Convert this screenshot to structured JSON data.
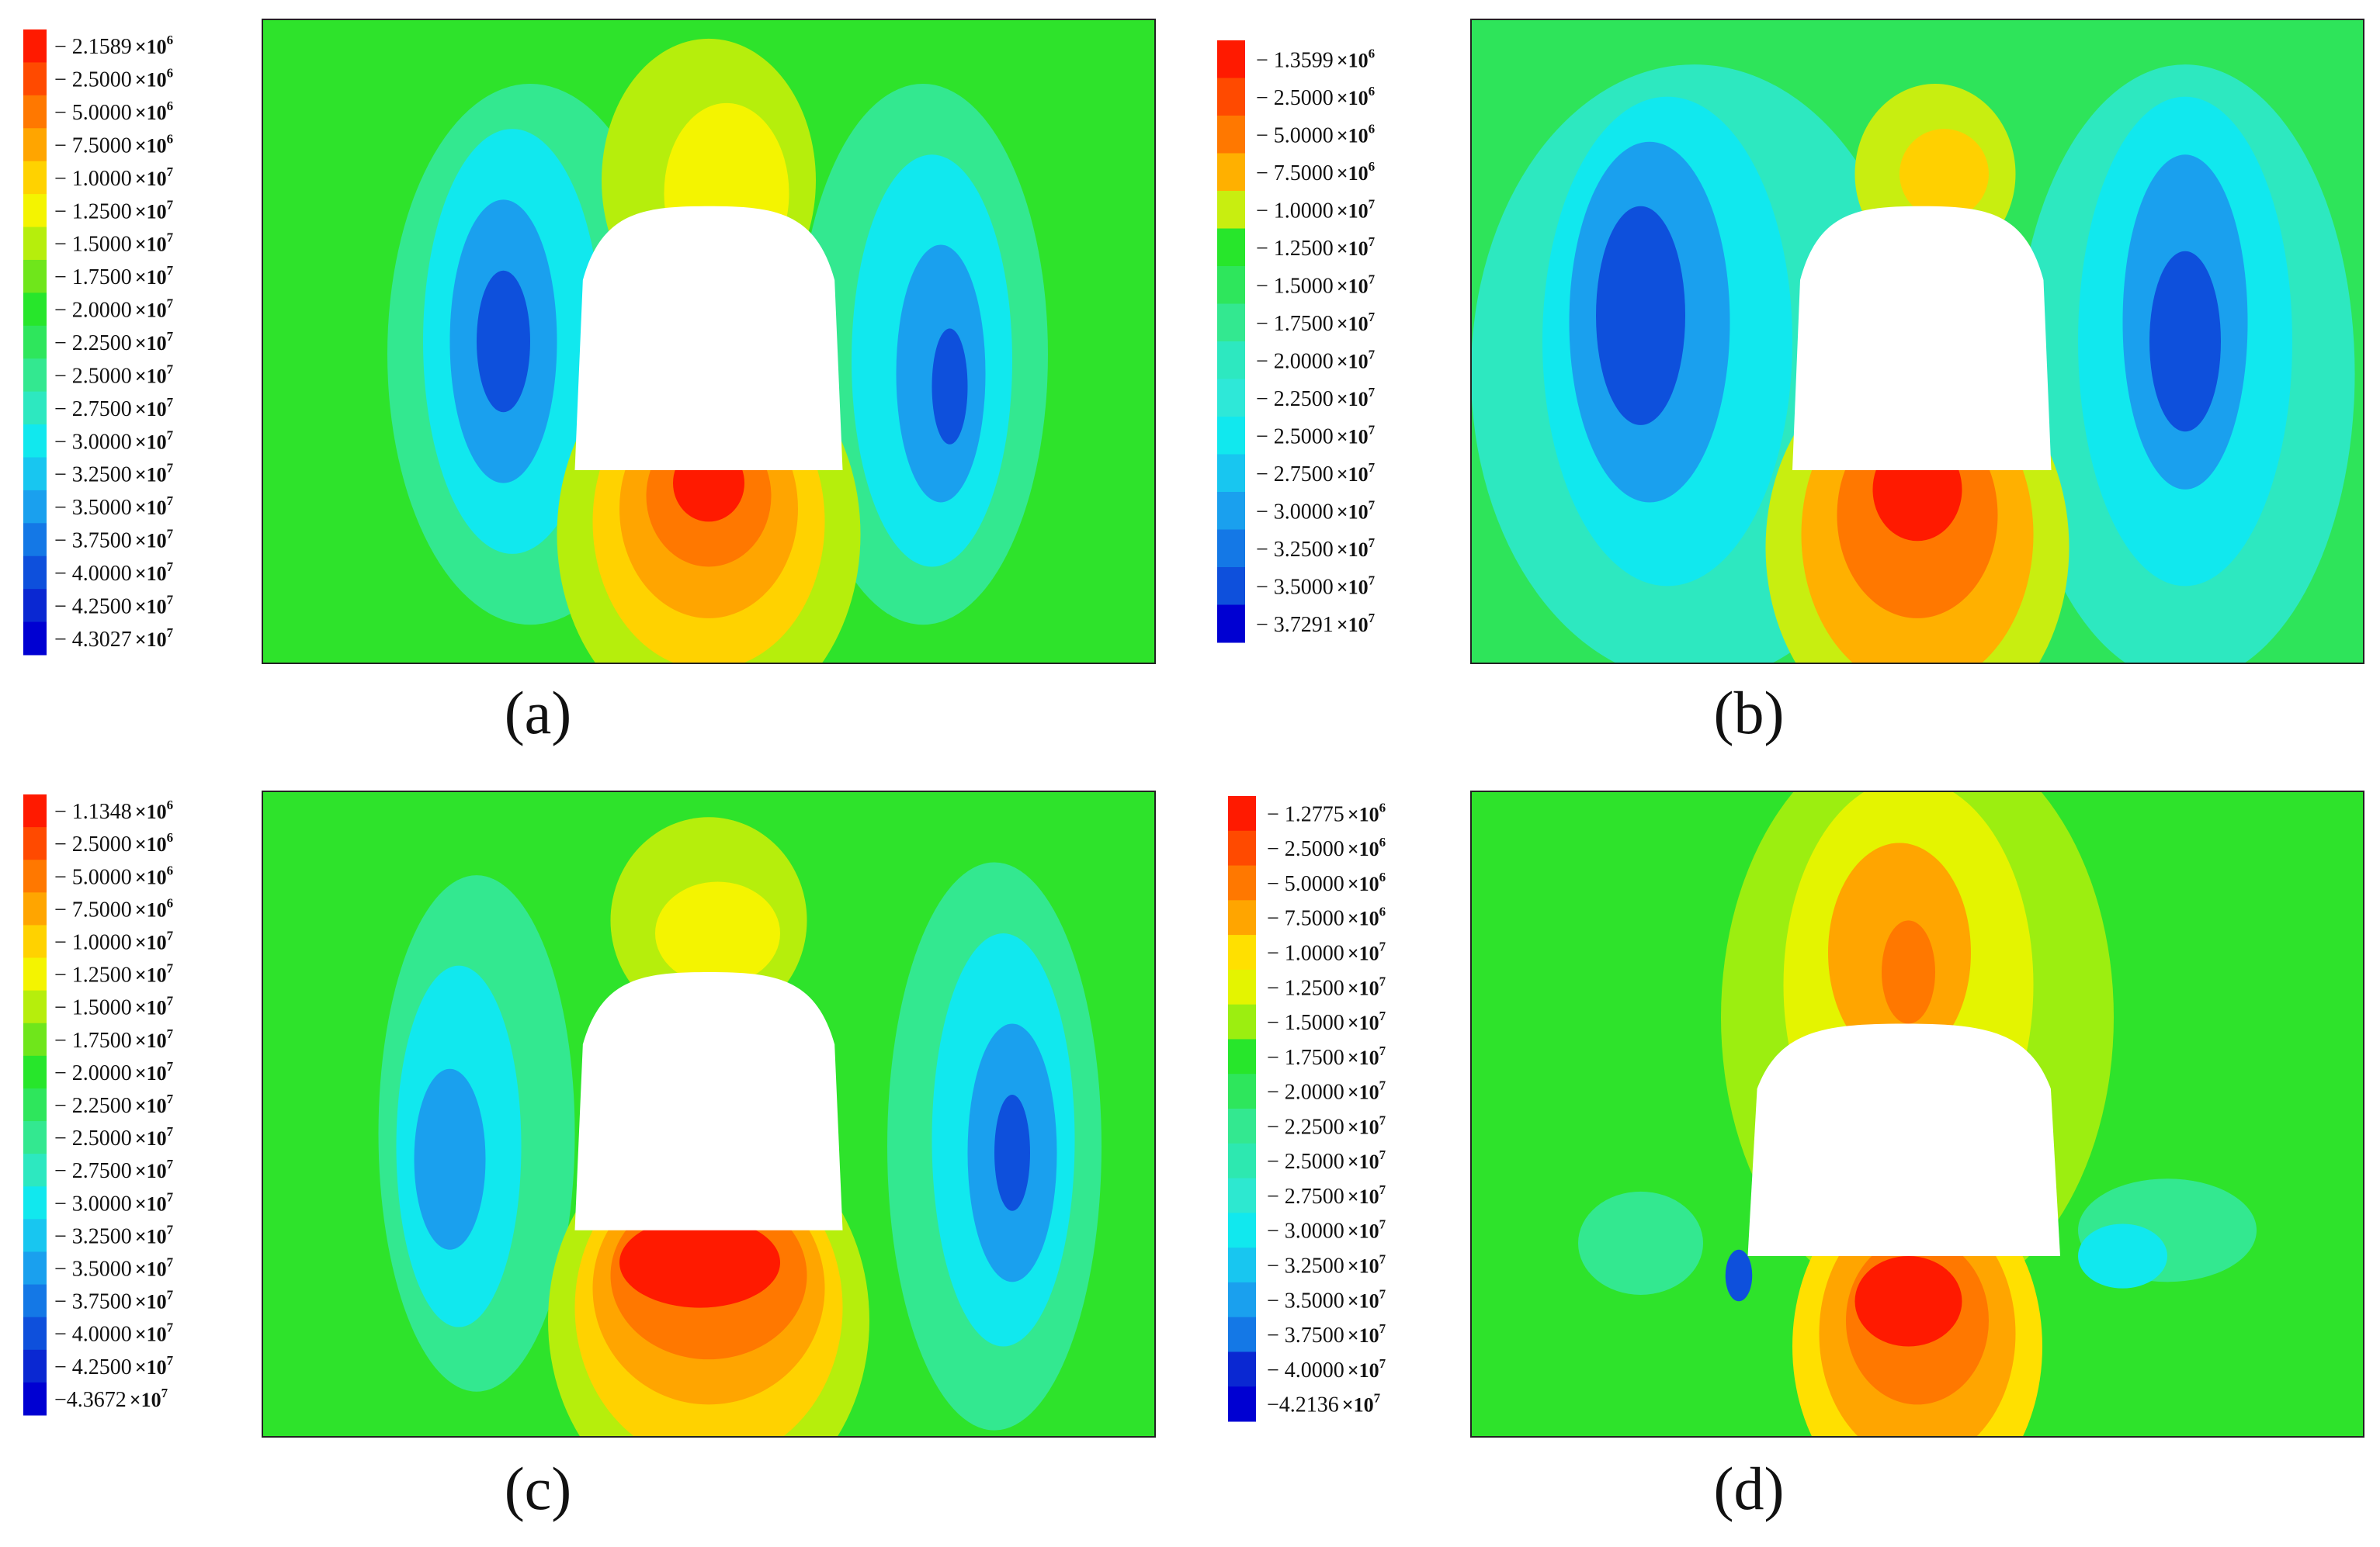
{
  "chart_data": [
    {
      "type": "heatmap",
      "caption": "(a)",
      "legend": {
        "entries": [
          {
            "mantissa": "− 2.1589",
            "exponent": "6",
            "color": "#ff1a00"
          },
          {
            "mantissa": "− 2.5000",
            "exponent": "6",
            "color": "#ff4a00"
          },
          {
            "mantissa": "− 5.0000",
            "exponent": "6",
            "color": "#ff7800"
          },
          {
            "mantissa": "− 7.5000",
            "exponent": "6",
            "color": "#ffa500"
          },
          {
            "mantissa": "− 1.0000",
            "exponent": "7",
            "color": "#ffd200"
          },
          {
            "mantissa": "− 1.2500",
            "exponent": "7",
            "color": "#f4f400"
          },
          {
            "mantissa": "− 1.5000",
            "exponent": "7",
            "color": "#b6ee0c"
          },
          {
            "mantissa": "− 1.7500",
            "exponent": "7",
            "color": "#6fe61b"
          },
          {
            "mantissa": "− 2.0000",
            "exponent": "7",
            "color": "#27e62b"
          },
          {
            "mantissa": "− 2.2500",
            "exponent": "7",
            "color": "#2ee65c"
          },
          {
            "mantissa": "− 2.5000",
            "exponent": "7",
            "color": "#33e890"
          },
          {
            "mantissa": "− 2.7500",
            "exponent": "7",
            "color": "#2de8c0"
          },
          {
            "mantissa": "− 3.0000",
            "exponent": "7",
            "color": "#11e8ee"
          },
          {
            "mantissa": "− 3.2500",
            "exponent": "7",
            "color": "#18c6f0"
          },
          {
            "mantissa": "− 3.5000",
            "exponent": "7",
            "color": "#1aa0ee"
          },
          {
            "mantissa": "− 3.7500",
            "exponent": "7",
            "color": "#1478e6"
          },
          {
            "mantissa": "− 4.0000",
            "exponent": "7",
            "color": "#0e50dc"
          },
          {
            "mantissa": "− 4.2500",
            "exponent": "7",
            "color": "#0a28d2"
          },
          {
            "mantissa": "− 4.3027",
            "exponent": "7",
            "color": "#0000d2"
          }
        ]
      },
      "field": {
        "background": "#2ee32b",
        "regions": [
          {
            "color": "#33e890",
            "cx": 0.3,
            "cy": 0.52,
            "rx": 0.16,
            "ry": 0.42
          },
          {
            "color": "#11e8ee",
            "cx": 0.28,
            "cy": 0.5,
            "rx": 0.1,
            "ry": 0.33
          },
          {
            "color": "#1aa0ee",
            "cx": 0.27,
            "cy": 0.5,
            "rx": 0.06,
            "ry": 0.22
          },
          {
            "color": "#0e50dc",
            "cx": 0.27,
            "cy": 0.5,
            "rx": 0.03,
            "ry": 0.11
          },
          {
            "color": "#33e890",
            "cx": 0.74,
            "cy": 0.52,
            "rx": 0.14,
            "ry": 0.42
          },
          {
            "color": "#11e8ee",
            "cx": 0.75,
            "cy": 0.53,
            "rx": 0.09,
            "ry": 0.32
          },
          {
            "color": "#1aa0ee",
            "cx": 0.76,
            "cy": 0.55,
            "rx": 0.05,
            "ry": 0.2
          },
          {
            "color": "#0e50dc",
            "cx": 0.77,
            "cy": 0.57,
            "rx": 0.02,
            "ry": 0.09
          },
          {
            "color": "#b6ee0c",
            "cx": 0.5,
            "cy": 0.25,
            "rx": 0.12,
            "ry": 0.22
          },
          {
            "color": "#f4f400",
            "cx": 0.52,
            "cy": 0.27,
            "rx": 0.07,
            "ry": 0.14
          },
          {
            "color": "#b6ee0c",
            "cx": 0.5,
            "cy": 0.8,
            "rx": 0.17,
            "ry": 0.3
          },
          {
            "color": "#ffd200",
            "cx": 0.5,
            "cy": 0.78,
            "rx": 0.13,
            "ry": 0.23
          },
          {
            "color": "#ffa500",
            "cx": 0.5,
            "cy": 0.76,
            "rx": 0.1,
            "ry": 0.17
          },
          {
            "color": "#ff7800",
            "cx": 0.5,
            "cy": 0.74,
            "rx": 0.07,
            "ry": 0.11
          },
          {
            "color": "#ff1a00",
            "cx": 0.5,
            "cy": 0.72,
            "rx": 0.04,
            "ry": 0.06
          }
        ]
      },
      "opening": {
        "top": 0.29,
        "bottom": 0.7,
        "left": 0.35,
        "right": 0.65
      }
    },
    {
      "type": "heatmap",
      "caption": "(b)",
      "legend": {
        "entries": [
          {
            "mantissa": "− 1.3599",
            "exponent": "6",
            "color": "#ff1a00"
          },
          {
            "mantissa": "− 2.5000",
            "exponent": "6",
            "color": "#ff4a00"
          },
          {
            "mantissa": "− 5.0000",
            "exponent": "6",
            "color": "#ff7800"
          },
          {
            "mantissa": "− 7.5000",
            "exponent": "6",
            "color": "#ffb000"
          },
          {
            "mantissa": "− 1.0000",
            "exponent": "7",
            "color": "#c8ee10"
          },
          {
            "mantissa": "− 1.2500",
            "exponent": "7",
            "color": "#27e62b"
          },
          {
            "mantissa": "− 1.5000",
            "exponent": "7",
            "color": "#2ee65c"
          },
          {
            "mantissa": "− 1.7500",
            "exponent": "7",
            "color": "#33e890"
          },
          {
            "mantissa": "− 2.0000",
            "exponent": "7",
            "color": "#2de8c0"
          },
          {
            "mantissa": "− 2.2500",
            "exponent": "7",
            "color": "#2ee8d8"
          },
          {
            "mantissa": "− 2.5000",
            "exponent": "7",
            "color": "#11e8ee"
          },
          {
            "mantissa": "− 2.7500",
            "exponent": "7",
            "color": "#18c6f0"
          },
          {
            "mantissa": "− 3.0000",
            "exponent": "7",
            "color": "#1aa0ee"
          },
          {
            "mantissa": "− 3.2500",
            "exponent": "7",
            "color": "#1478e6"
          },
          {
            "mantissa": "− 3.5000",
            "exponent": "7",
            "color": "#0e50dc"
          },
          {
            "mantissa": "− 3.7291",
            "exponent": "7",
            "color": "#0000d2"
          }
        ]
      },
      "field": {
        "background": "#2ee45a",
        "regions": [
          {
            "color": "#2de8c0",
            "cx": 0.25,
            "cy": 0.55,
            "rx": 0.25,
            "ry": 0.48
          },
          {
            "color": "#11e8ee",
            "cx": 0.22,
            "cy": 0.5,
            "rx": 0.14,
            "ry": 0.38
          },
          {
            "color": "#1aa0ee",
            "cx": 0.2,
            "cy": 0.47,
            "rx": 0.09,
            "ry": 0.28
          },
          {
            "color": "#0e50dc",
            "cx": 0.19,
            "cy": 0.46,
            "rx": 0.05,
            "ry": 0.17
          },
          {
            "color": "#2de8c0",
            "cx": 0.8,
            "cy": 0.55,
            "rx": 0.19,
            "ry": 0.48
          },
          {
            "color": "#11e8ee",
            "cx": 0.8,
            "cy": 0.5,
            "rx": 0.12,
            "ry": 0.38
          },
          {
            "color": "#1aa0ee",
            "cx": 0.8,
            "cy": 0.47,
            "rx": 0.07,
            "ry": 0.26
          },
          {
            "color": "#0e50dc",
            "cx": 0.8,
            "cy": 0.5,
            "rx": 0.04,
            "ry": 0.14
          },
          {
            "color": "#c8ee10",
            "cx": 0.52,
            "cy": 0.24,
            "rx": 0.09,
            "ry": 0.14
          },
          {
            "color": "#ffd000",
            "cx": 0.53,
            "cy": 0.24,
            "rx": 0.05,
            "ry": 0.07
          },
          {
            "color": "#c8ee10",
            "cx": 0.5,
            "cy": 0.82,
            "rx": 0.17,
            "ry": 0.3
          },
          {
            "color": "#ffb000",
            "cx": 0.5,
            "cy": 0.8,
            "rx": 0.13,
            "ry": 0.24
          },
          {
            "color": "#ff7800",
            "cx": 0.5,
            "cy": 0.77,
            "rx": 0.09,
            "ry": 0.16
          },
          {
            "color": "#ff1a00",
            "cx": 0.5,
            "cy": 0.73,
            "rx": 0.05,
            "ry": 0.08
          }
        ]
      },
      "opening": {
        "top": 0.29,
        "bottom": 0.7,
        "left": 0.36,
        "right": 0.65
      }
    },
    {
      "type": "heatmap",
      "caption": "(c)",
      "legend": {
        "entries": [
          {
            "mantissa": "− 1.1348",
            "exponent": "6",
            "color": "#ff1a00"
          },
          {
            "mantissa": "− 2.5000",
            "exponent": "6",
            "color": "#ff4a00"
          },
          {
            "mantissa": "− 5.0000",
            "exponent": "6",
            "color": "#ff7800"
          },
          {
            "mantissa": "− 7.5000",
            "exponent": "6",
            "color": "#ffa500"
          },
          {
            "mantissa": "− 1.0000",
            "exponent": "7",
            "color": "#ffd200"
          },
          {
            "mantissa": "− 1.2500",
            "exponent": "7",
            "color": "#f4f400"
          },
          {
            "mantissa": "− 1.5000",
            "exponent": "7",
            "color": "#b6ee0c"
          },
          {
            "mantissa": "− 1.7500",
            "exponent": "7",
            "color": "#6fe61b"
          },
          {
            "mantissa": "− 2.0000",
            "exponent": "7",
            "color": "#27e62b"
          },
          {
            "mantissa": "− 2.2500",
            "exponent": "7",
            "color": "#2ee65c"
          },
          {
            "mantissa": "− 2.5000",
            "exponent": "7",
            "color": "#33e890"
          },
          {
            "mantissa": "− 2.7500",
            "exponent": "7",
            "color": "#2de8c0"
          },
          {
            "mantissa": "− 3.0000",
            "exponent": "7",
            "color": "#11e8ee"
          },
          {
            "mantissa": "− 3.2500",
            "exponent": "7",
            "color": "#18c6f0"
          },
          {
            "mantissa": "− 3.5000",
            "exponent": "7",
            "color": "#1aa0ee"
          },
          {
            "mantissa": "− 3.7500",
            "exponent": "7",
            "color": "#1478e6"
          },
          {
            "mantissa": "− 4.0000",
            "exponent": "7",
            "color": "#0e50dc"
          },
          {
            "mantissa": "− 4.2500",
            "exponent": "7",
            "color": "#0a28d2"
          },
          {
            "mantissa": "−4.3672",
            "exponent": "7",
            "color": "#0000d2"
          }
        ]
      },
      "field": {
        "background": "#2ee32b",
        "regions": [
          {
            "color": "#33e890",
            "cx": 0.24,
            "cy": 0.53,
            "rx": 0.11,
            "ry": 0.4
          },
          {
            "color": "#11e8ee",
            "cx": 0.22,
            "cy": 0.55,
            "rx": 0.07,
            "ry": 0.28
          },
          {
            "color": "#1aa0ee",
            "cx": 0.21,
            "cy": 0.57,
            "rx": 0.04,
            "ry": 0.14
          },
          {
            "color": "#33e890",
            "cx": 0.82,
            "cy": 0.55,
            "rx": 0.12,
            "ry": 0.44
          },
          {
            "color": "#11e8ee",
            "cx": 0.83,
            "cy": 0.54,
            "rx": 0.08,
            "ry": 0.32
          },
          {
            "color": "#1aa0ee",
            "cx": 0.84,
            "cy": 0.56,
            "rx": 0.05,
            "ry": 0.2
          },
          {
            "color": "#0e50dc",
            "cx": 0.84,
            "cy": 0.56,
            "rx": 0.02,
            "ry": 0.09
          },
          {
            "color": "#b6ee0c",
            "cx": 0.5,
            "cy": 0.2,
            "rx": 0.11,
            "ry": 0.16
          },
          {
            "color": "#f4f400",
            "cx": 0.51,
            "cy": 0.22,
            "rx": 0.07,
            "ry": 0.08
          },
          {
            "color": "#b6ee0c",
            "cx": 0.5,
            "cy": 0.82,
            "rx": 0.18,
            "ry": 0.3
          },
          {
            "color": "#ffd200",
            "cx": 0.5,
            "cy": 0.8,
            "rx": 0.15,
            "ry": 0.24
          },
          {
            "color": "#ffa500",
            "cx": 0.5,
            "cy": 0.77,
            "rx": 0.13,
            "ry": 0.18
          },
          {
            "color": "#ff7800",
            "cx": 0.5,
            "cy": 0.75,
            "rx": 0.11,
            "ry": 0.13
          },
          {
            "color": "#ff1a00",
            "cx": 0.49,
            "cy": 0.73,
            "rx": 0.09,
            "ry": 0.07
          }
        ]
      },
      "opening": {
        "top": 0.28,
        "bottom": 0.68,
        "left": 0.35,
        "right": 0.65
      }
    },
    {
      "type": "heatmap",
      "caption": "(d)",
      "legend": {
        "entries": [
          {
            "mantissa": "− 1.2775",
            "exponent": "6",
            "color": "#ff1a00"
          },
          {
            "mantissa": "− 2.5000",
            "exponent": "6",
            "color": "#ff4a00"
          },
          {
            "mantissa": "− 5.0000",
            "exponent": "6",
            "color": "#ff7800"
          },
          {
            "mantissa": "− 7.5000",
            "exponent": "6",
            "color": "#ffa500"
          },
          {
            "mantissa": "− 1.0000",
            "exponent": "7",
            "color": "#ffe000"
          },
          {
            "mantissa": "− 1.2500",
            "exponent": "7",
            "color": "#e4f400"
          },
          {
            "mantissa": "− 1.5000",
            "exponent": "7",
            "color": "#9cee10"
          },
          {
            "mantissa": "− 1.7500",
            "exponent": "7",
            "color": "#27e62b"
          },
          {
            "mantissa": "− 2.0000",
            "exponent": "7",
            "color": "#2ee65c"
          },
          {
            "mantissa": "− 2.2500",
            "exponent": "7",
            "color": "#33e890"
          },
          {
            "mantissa": "− 2.5000",
            "exponent": "7",
            "color": "#2de8b0"
          },
          {
            "mantissa": "− 2.7500",
            "exponent": "7",
            "color": "#2de8d0"
          },
          {
            "mantissa": "− 3.0000",
            "exponent": "7",
            "color": "#11e8ee"
          },
          {
            "mantissa": "− 3.2500",
            "exponent": "7",
            "color": "#18c6f0"
          },
          {
            "mantissa": "− 3.5000",
            "exponent": "7",
            "color": "#1aa0ee"
          },
          {
            "mantissa": "− 3.7500",
            "exponent": "7",
            "color": "#1478e6"
          },
          {
            "mantissa": "− 4.0000",
            "exponent": "7",
            "color": "#0a28d2"
          },
          {
            "mantissa": "−4.2136",
            "exponent": "7",
            "color": "#0000d2"
          }
        ]
      },
      "field": {
        "background": "#2ee32b",
        "regions": [
          {
            "color": "#9cee10",
            "cx": 0.5,
            "cy": 0.35,
            "rx": 0.22,
            "ry": 0.45
          },
          {
            "color": "#e4f400",
            "cx": 0.49,
            "cy": 0.3,
            "rx": 0.14,
            "ry": 0.32
          },
          {
            "color": "#ffa500",
            "cx": 0.48,
            "cy": 0.25,
            "rx": 0.08,
            "ry": 0.17
          },
          {
            "color": "#ff7800",
            "cx": 0.49,
            "cy": 0.28,
            "rx": 0.03,
            "ry": 0.08
          },
          {
            "color": "#33e890",
            "cx": 0.19,
            "cy": 0.7,
            "rx": 0.07,
            "ry": 0.08
          },
          {
            "color": "#33e890",
            "cx": 0.78,
            "cy": 0.68,
            "rx": 0.1,
            "ry": 0.08
          },
          {
            "color": "#11e8ee",
            "cx": 0.73,
            "cy": 0.72,
            "rx": 0.05,
            "ry": 0.05
          },
          {
            "color": "#ffe000",
            "cx": 0.5,
            "cy": 0.86,
            "rx": 0.14,
            "ry": 0.26
          },
          {
            "color": "#ffa500",
            "cx": 0.5,
            "cy": 0.84,
            "rx": 0.11,
            "ry": 0.2
          },
          {
            "color": "#ff7800",
            "cx": 0.5,
            "cy": 0.82,
            "rx": 0.08,
            "ry": 0.13
          },
          {
            "color": "#ff1a00",
            "cx": 0.49,
            "cy": 0.79,
            "rx": 0.06,
            "ry": 0.07
          },
          {
            "color": "#0e50dc",
            "cx": 0.3,
            "cy": 0.75,
            "rx": 0.015,
            "ry": 0.04
          }
        ]
      },
      "opening": {
        "top": 0.36,
        "bottom": 0.72,
        "left": 0.31,
        "right": 0.66
      }
    }
  ]
}
